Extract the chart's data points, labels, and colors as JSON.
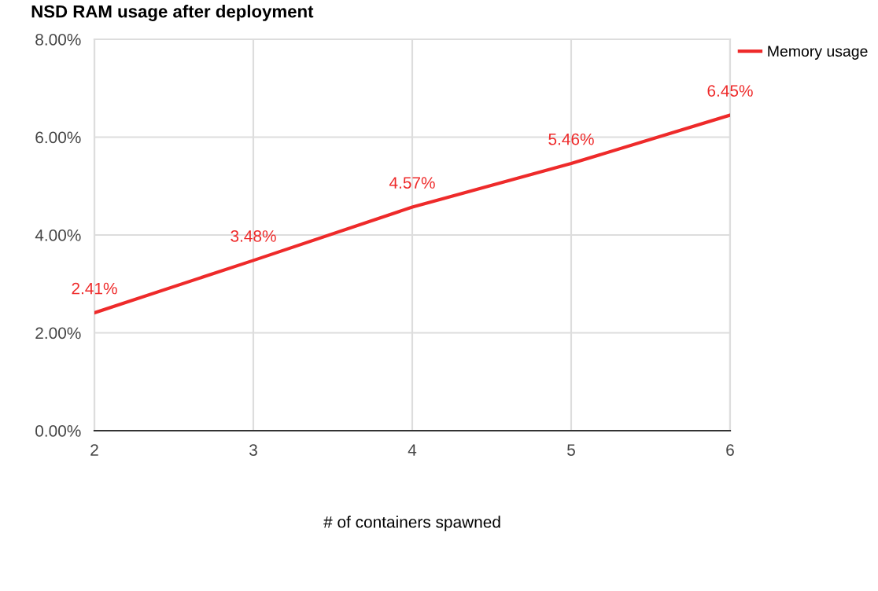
{
  "chart_data": {
    "type": "line",
    "title": "NSD RAM usage after deployment",
    "xlabel": "# of containers spawned",
    "x": [
      2,
      3,
      4,
      5,
      6
    ],
    "series": [
      {
        "name": "Memory usage",
        "color": "#ee2a2a",
        "values": [
          2.41,
          3.48,
          4.57,
          5.46,
          6.45
        ]
      }
    ],
    "value_labels": [
      "2.41%",
      "3.48%",
      "4.57%",
      "5.46%",
      "6.45%"
    ],
    "xlim": [
      2,
      6
    ],
    "xticks": [
      2,
      3,
      4,
      5,
      6
    ],
    "ylim": [
      0,
      8
    ],
    "yticks": [
      {
        "value": 0,
        "label": "0.00%"
      },
      {
        "value": 2,
        "label": "2.00%"
      },
      {
        "value": 4,
        "label": "4.00%"
      },
      {
        "value": 6,
        "label": "6.00%"
      },
      {
        "value": 8,
        "label": "8.00%"
      }
    ],
    "grid": true,
    "legend": "top right",
    "marker": "none",
    "line_style": "solid"
  }
}
